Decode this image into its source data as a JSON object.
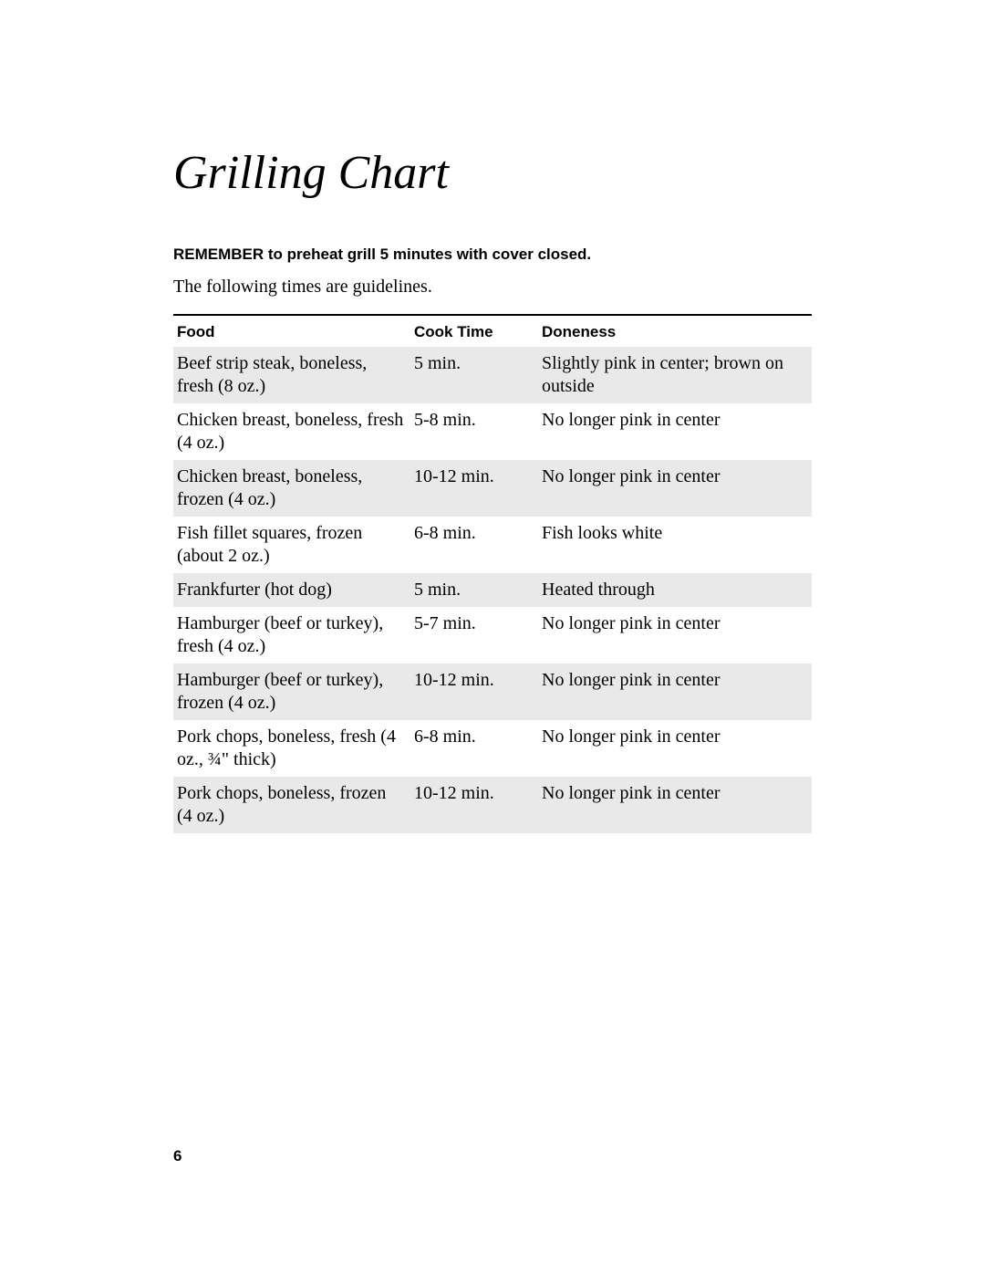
{
  "title": "Grilling Chart",
  "reminder": "REMEMBER to preheat grill 5 minutes with cover closed.",
  "subtitle": "The following times are guidelines.",
  "table": {
    "columns": [
      "Food",
      "Cook Time",
      "Doneness"
    ],
    "rows": [
      {
        "food": "Beef strip steak, boneless, fresh (8 oz.)",
        "cook_time": "5 min.",
        "doneness": "Slightly pink in center; brown on outside",
        "shaded": true
      },
      {
        "food": "Chicken breast, boneless, fresh (4 oz.)",
        "cook_time": "5-8 min.",
        "doneness": "No longer pink in center",
        "shaded": false
      },
      {
        "food": "Chicken breast, boneless, frozen (4 oz.)",
        "cook_time": "10-12 min.",
        "doneness": "No longer pink in center",
        "shaded": true
      },
      {
        "food": "Fish fillet squares, frozen (about 2 oz.)",
        "cook_time": "6-8 min.",
        "doneness": "Fish looks white",
        "shaded": false
      },
      {
        "food": "Frankfurter (hot dog)",
        "cook_time": "5 min.",
        "doneness": "Heated through",
        "shaded": true
      },
      {
        "food": "Hamburger (beef or turkey), fresh (4 oz.)",
        "cook_time": "5-7 min.",
        "doneness": "No longer pink in center",
        "shaded": false
      },
      {
        "food": "Hamburger (beef or turkey), frozen (4 oz.)",
        "cook_time": "10-12 min.",
        "doneness": "No longer pink in center",
        "shaded": true
      },
      {
        "food": "Pork chops, boneless, fresh (4 oz., ¾\" thick)",
        "cook_time": "6-8 min.",
        "doneness": "No longer pink in center",
        "shaded": false
      },
      {
        "food": "Pork chops, boneless, frozen (4 oz.)",
        "cook_time": "10-12 min.",
        "doneness": "No longer pink in center",
        "shaded": true
      }
    ]
  },
  "page_number": "6",
  "colors": {
    "background": "#ffffff",
    "text": "#000000",
    "shaded_row": "#e9e9e9",
    "border": "#000000"
  },
  "typography": {
    "title_fontsize": 52,
    "title_style": "italic",
    "title_family": "Georgia",
    "header_fontsize": 17,
    "header_family": "Arial",
    "header_weight": "bold",
    "body_fontsize": 20,
    "body_family": "Georgia"
  },
  "layout": {
    "col_food_width": 260,
    "col_time_width": 140
  }
}
